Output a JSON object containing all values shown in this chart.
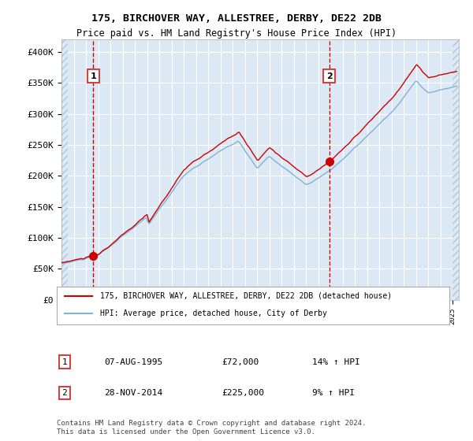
{
  "title": "175, BIRCHOVER WAY, ALLESTREE, DERBY, DE22 2DB",
  "subtitle": "Price paid vs. HM Land Registry's House Price Index (HPI)",
  "legend_line1": "175, BIRCHOVER WAY, ALLESTREE, DERBY, DE22 2DB (detached house)",
  "legend_line2": "HPI: Average price, detached house, City of Derby",
  "sale1_date_num": 1995.6,
  "sale1_label": "1",
  "sale1_price": 72000,
  "sale1_date_str": "07-AUG-1995",
  "sale1_hpi_pct": "14% ↑ HPI",
  "sale2_date_num": 2014.9,
  "sale2_label": "2",
  "sale2_price": 225000,
  "sale2_date_str": "28-NOV-2014",
  "sale2_hpi_pct": "9% ↑ HPI",
  "ylabel_vals": [
    0,
    50000,
    100000,
    150000,
    200000,
    250000,
    300000,
    350000,
    400000
  ],
  "ylabel_labels": [
    "£0",
    "£50K",
    "£100K",
    "£150K",
    "£200K",
    "£250K",
    "£300K",
    "£350K",
    "£400K"
  ],
  "xmin": 1993.0,
  "xmax": 2025.5,
  "ymin": 0,
  "ymax": 420000,
  "background_color": "#dce9f5",
  "hatch_color": "#b0c4d8",
  "grid_color": "#ffffff",
  "line_color_red": "#cc0000",
  "line_color_blue": "#7fb3d3",
  "dashed_line_color": "#cc0000",
  "marker_color": "#cc0000",
  "footnote": "Contains HM Land Registry data © Crown copyright and database right 2024.\nThis data is licensed under the Open Government Licence v3.0."
}
